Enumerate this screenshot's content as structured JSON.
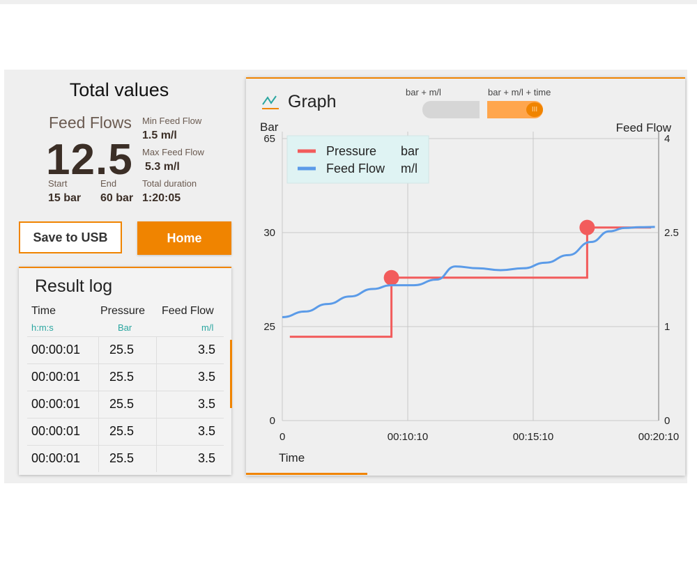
{
  "total_values": {
    "title": "Total values",
    "feed_flows_label": "Feed Flows",
    "feed_flows_value": "12.5",
    "min_feed_flow_label": "Min Feed Flow",
    "min_feed_flow_value": "1.5 m/l",
    "max_feed_flow_label": "Max Feed Flow",
    "max_feed_flow_value": "5.3 m/l",
    "start_label": "Start",
    "start_value": "15 bar",
    "end_label": "End",
    "end_value": "60 bar",
    "duration_label": "Total duration",
    "duration_value": "1:20:05"
  },
  "buttons": {
    "save_usb": "Save to USB",
    "home": "Home"
  },
  "result_log": {
    "title": "Result log",
    "headers": [
      "Time",
      "Pressure",
      "Feed Flow"
    ],
    "units": [
      "h:m:s",
      "Bar",
      "m/l"
    ],
    "rows": [
      [
        "00:00:01",
        "25.5",
        "3.5"
      ],
      [
        "00:00:01",
        "25.5",
        "3.5"
      ],
      [
        "00:00:01",
        "25.5",
        "3.5"
      ],
      [
        "00:00:01",
        "25.5",
        "3.5"
      ],
      [
        "00:00:01",
        "25.5",
        "3.5"
      ]
    ]
  },
  "graph": {
    "title": "Graph",
    "toggle_left": "bar + m/l",
    "toggle_right": "bar + m/l + time",
    "toggle_knob": "III"
  },
  "chart_data": {
    "type": "line",
    "title": "Graph",
    "xlabel": "Time",
    "ylabel_left": "Bar",
    "ylabel_right": "Feed Flow",
    "x_ticks": [
      "0",
      "00:10:10",
      "00:15:10",
      "00:20:10"
    ],
    "y_left_ticks": [
      "0",
      "25",
      "30",
      "65"
    ],
    "y_right_ticks": [
      "0",
      "1",
      "2.5",
      "4"
    ],
    "legend": [
      {
        "name": "Pressure",
        "unit": "bar",
        "color": "#f25c5c"
      },
      {
        "name": "Feed Flow",
        "unit": "m/l",
        "color": "#5b9be8"
      }
    ],
    "series": [
      {
        "name": "Pressure",
        "axis": "left",
        "step": true,
        "x": [
          0.02,
          0.29,
          0.29,
          0.81,
          0.81,
          0.98
        ],
        "y": [
          22.3,
          22.3,
          27.6,
          27.6,
          31.9,
          31.9
        ],
        "markers": [
          [
            0.29,
            27.6
          ],
          [
            0.81,
            31.9
          ]
        ]
      },
      {
        "name": "Feed Flow",
        "axis": "left",
        "x": [
          0,
          0.06,
          0.12,
          0.18,
          0.24,
          0.29,
          0.35,
          0.41,
          0.46,
          0.52,
          0.58,
          0.64,
          0.7,
          0.76,
          0.82,
          0.87,
          0.91,
          0.95,
          0.99
        ],
        "y": [
          25.5,
          25.8,
          26.2,
          26.6,
          27.0,
          27.2,
          27.2,
          27.5,
          28.2,
          28.1,
          28.0,
          28.1,
          28.4,
          28.8,
          29.5,
          30.5,
          31.7,
          32.0,
          32.1
        ]
      }
    ]
  }
}
